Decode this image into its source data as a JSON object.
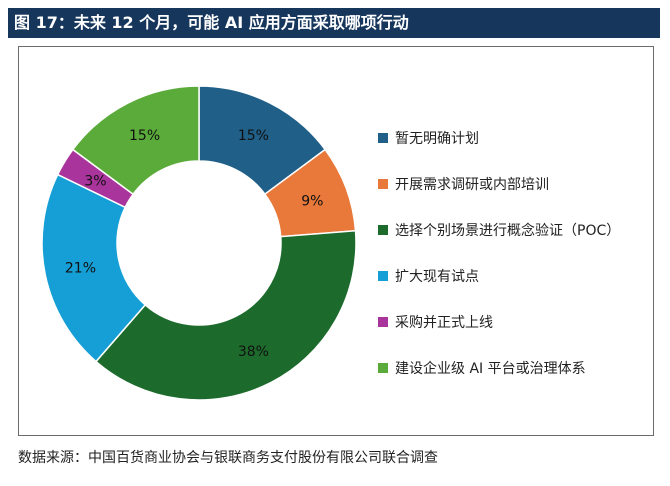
{
  "figure": {
    "title": "图 17：未来 12 个月，可能 AI 应用方面采取哪项行动",
    "source": "数据来源：中国百货商业协会与银联商务支付股份有限公司联合调查"
  },
  "chart_data": {
    "type": "pie",
    "variant": "donut",
    "start_angle_deg": 0,
    "direction": "clockwise",
    "legend_position": "right",
    "series": [
      {
        "name": "暂无明确计划",
        "value": 15,
        "label": "15%",
        "color": "#1f5f88"
      },
      {
        "name": "开展需求调研或内部培训",
        "value": 9,
        "label": "9%",
        "color": "#e8793a"
      },
      {
        "name": "选择个别场景进行概念验证（POC）",
        "value": 38,
        "label": "38%",
        "color": "#1d6b2c"
      },
      {
        "name": "扩大现有试点",
        "value": 21,
        "label": "21%",
        "color": "#159fd6"
      },
      {
        "name": "采购并正式上线",
        "value": 3,
        "label": "3%",
        "color": "#a9349b"
      },
      {
        "name": "建设企业级 AI 平台或治理体系",
        "value": 15,
        "label": "15%",
        "color": "#5aab39"
      }
    ]
  }
}
